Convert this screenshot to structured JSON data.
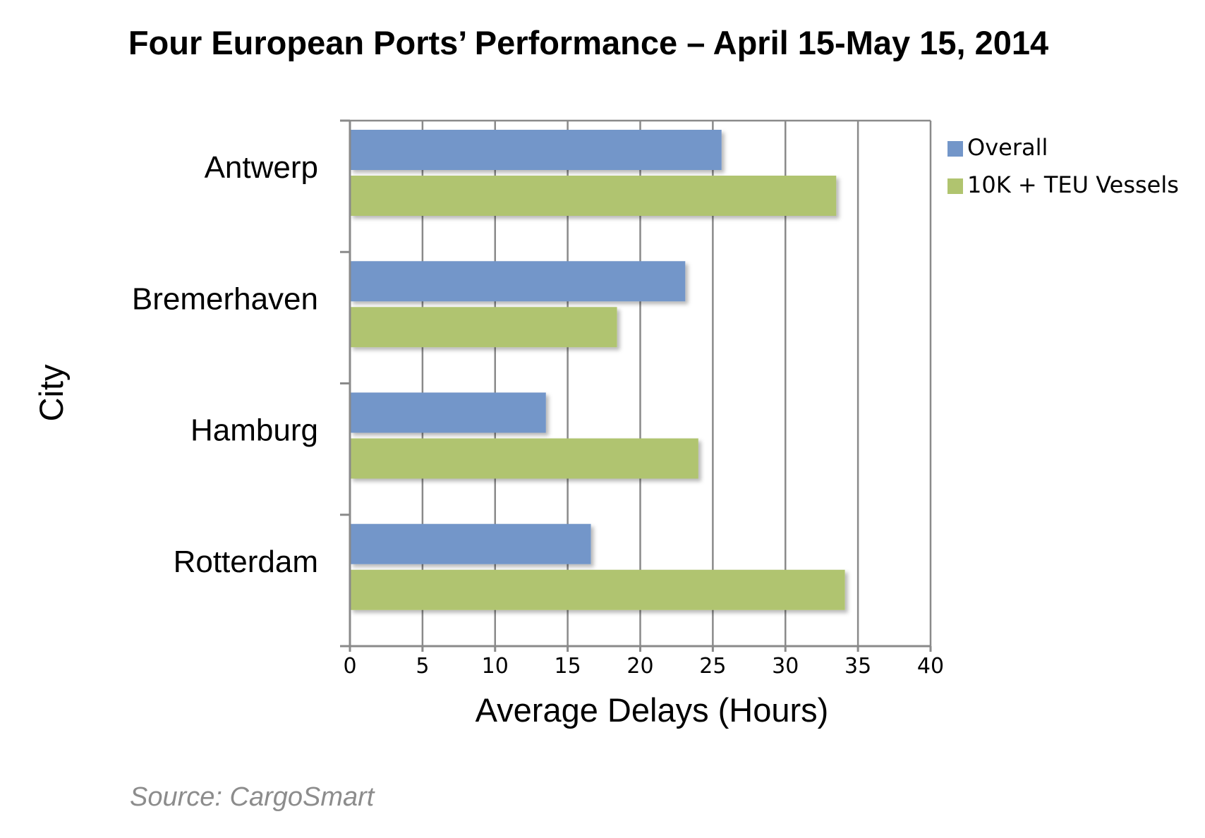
{
  "chart_data": {
    "type": "bar",
    "orientation": "horizontal",
    "title": "Four European Ports’ Performance – April 15-May 15, 2014",
    "categories": [
      "Antwerp",
      "Bremerhaven",
      "Hamburg",
      "Rotterdam"
    ],
    "series": [
      {
        "name": "Overall",
        "color": "#7396c9",
        "values": [
          25.6,
          23.1,
          13.5,
          16.6
        ]
      },
      {
        "name": "10K + TEU Vessels",
        "color": "#b0c46f",
        "values": [
          33.5,
          18.4,
          24.0,
          34.1
        ]
      }
    ],
    "xlabel": "Average Delays (Hours)",
    "ylabel": "City",
    "xlim": [
      0,
      40
    ],
    "xticks": [
      "0",
      "5",
      "10",
      "15",
      "20",
      "25",
      "30",
      "35",
      "40"
    ],
    "grid": true,
    "legend_position": "right",
    "source": "Source: CargoSmart"
  }
}
